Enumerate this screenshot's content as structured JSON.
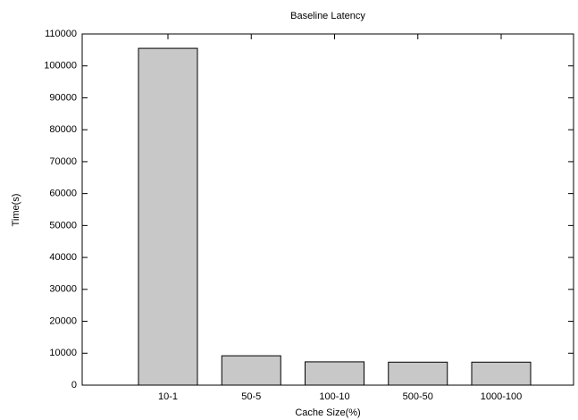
{
  "chart_data": {
    "type": "bar",
    "title": "Baseline Latency",
    "x_label": "Cache Size(%)",
    "y_label": "Time(s)",
    "categories": [
      "10-1",
      "50-5",
      "100-10",
      "500-50",
      "1000-100"
    ],
    "values": [
      105500,
      9200,
      7300,
      7200,
      7200
    ],
    "color": "#c8c8c8",
    "ylim": [
      0,
      110000
    ],
    "yticks": [
      0,
      10000,
      20000,
      30000,
      40000,
      50000,
      60000,
      70000,
      80000,
      90000,
      100000,
      110000
    ]
  }
}
